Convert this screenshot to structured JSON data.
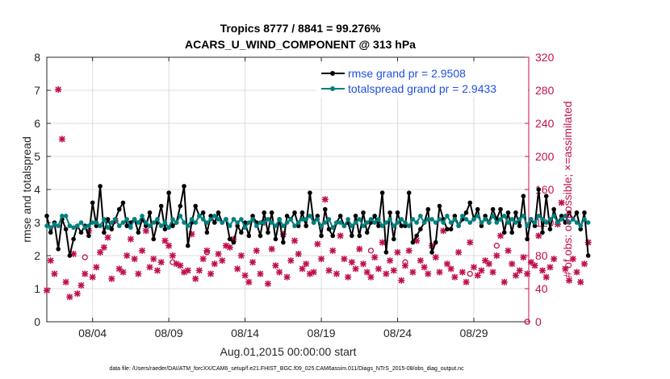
{
  "chart_data": {
    "type": "line",
    "title": [
      "Tropics 8777 / 8841 = 99.276%",
      "ACARS_U_WIND_COMPONENT @ 313 hPa"
    ],
    "xlabel": "Aug.01,2015 00:00:00 start",
    "ylabel": "rmse and totalspread",
    "y2label": "# of obs: o=possible; ×=assimilated",
    "xlim": [
      1,
      32.6
    ],
    "ylim": [
      0,
      8
    ],
    "y2lim": [
      0,
      320
    ],
    "x_ticks": [
      4,
      9,
      14,
      19,
      24,
      29
    ],
    "x_tick_labels": [
      "08/04",
      "08/09",
      "08/14",
      "08/19",
      "08/24",
      "08/29"
    ],
    "y_ticks": [
      0,
      1,
      2,
      3,
      4,
      5,
      6,
      7,
      8
    ],
    "y2_ticks": [
      0,
      40,
      80,
      120,
      160,
      200,
      240,
      280,
      320
    ],
    "legend_location": "top-right",
    "footer": "data file: /Users/raeder/DAI/ATM_forcXX/CAM6_setup/f.e21.FHIST_BGC.f09_025.CAM6assim.011/Diags_NTrS_2015-08/obs_diag_output.nc",
    "series": [
      {
        "name": "rmse grand pr = 2.9508",
        "axis": "left",
        "color": "#000000",
        "start_day": 1.0,
        "step_days": 0.25,
        "values": [
          3.2,
          2.7,
          3.0,
          2.2,
          3.1,
          2.8,
          2.0,
          2.5,
          2.9,
          2.7,
          2.9,
          2.6,
          3.6,
          2.9,
          4.1,
          2.7,
          3.1,
          2.8,
          3.1,
          3.4,
          3.6,
          2.9,
          3.0,
          3.1,
          2.7,
          3.1,
          2.9,
          3.3,
          2.5,
          3.0,
          3.5,
          2.8,
          3.9,
          2.9,
          3.0,
          3.5,
          4.1,
          2.3,
          3.0,
          3.5,
          3.2,
          3.3,
          2.7,
          3.2,
          3.0,
          3.3,
          3.0,
          3.1,
          2.5,
          2.4,
          2.9,
          2.7,
          3.0,
          2.6,
          3.2,
          3.0,
          2.6,
          3.3,
          2.7,
          3.3,
          2.5,
          3.1,
          2.4,
          3.2,
          3.1,
          3.3,
          2.9,
          3.3,
          2.9,
          3.9,
          3.0,
          3.2,
          2.6,
          3.4,
          2.8,
          2.6,
          3.0,
          3.2,
          2.9,
          3.0,
          2.6,
          3.2,
          2.6,
          3.3,
          2.7,
          3.0,
          3.2,
          2.9,
          3.9,
          2.1,
          3.3,
          2.5,
          3.3,
          2.9,
          2.9,
          3.9,
          2.4,
          2.6,
          2.8,
          3.0,
          3.4,
          2.1,
          2.4,
          3.5,
          3.1,
          2.8,
          2.8,
          3.2,
          2.9,
          3.1,
          3.3,
          3.6,
          3.1,
          3.4,
          2.9,
          3.2,
          3.0,
          3.4,
          3.1,
          3.4,
          2.7,
          3.3,
          2.7,
          3.3,
          2.9,
          3.8,
          2.5,
          3.1,
          2.9,
          4.0,
          2.7,
          3.8,
          2.8,
          3.4,
          3.0,
          3.2,
          3.0,
          3.3,
          3.1,
          3.3,
          2.8,
          3.3,
          2.0
        ]
      },
      {
        "name": "totalspread grand pr = 2.9433",
        "axis": "left",
        "color": "#00807f",
        "start_day": 1.0,
        "step_days": 0.25,
        "values": [
          2.9,
          2.85,
          2.95,
          2.9,
          3.2,
          3.2,
          2.9,
          2.85,
          2.9,
          3.0,
          2.85,
          2.9,
          3.0,
          3.0,
          2.9,
          3.1,
          2.85,
          3.0,
          3.1,
          2.9,
          3.0,
          3.1,
          2.85,
          3.1,
          3.0,
          3.2,
          3.0,
          2.9,
          3.0,
          3.1,
          2.9,
          3.0,
          2.85,
          3.1,
          3.0,
          3.2,
          3.0,
          2.9,
          3.1,
          3.0,
          3.2,
          3.1,
          3.0,
          3.1,
          3.2,
          3.1,
          3.0,
          3.1,
          2.9,
          3.1,
          3.0,
          3.1,
          2.85,
          3.0,
          3.1,
          2.9,
          3.0,
          3.0,
          3.1,
          3.0,
          2.9,
          3.1,
          2.9,
          3.0,
          3.1,
          2.9,
          3.0,
          3.1,
          3.1,
          3.2,
          3.0,
          3.1,
          2.9,
          3.0,
          3.1,
          2.85,
          3.0,
          3.0,
          2.9,
          3.1,
          2.9,
          3.0,
          3.1,
          2.9,
          3.0,
          3.1,
          3.0,
          3.1,
          2.9,
          3.0,
          3.1,
          2.9,
          3.0,
          3.1,
          3.0,
          2.9,
          3.1,
          3.0,
          3.2,
          3.0,
          3.1,
          3.1,
          3.0,
          3.1,
          3.0,
          3.2,
          3.0,
          3.1,
          2.9,
          3.2,
          3.1,
          3.0,
          3.1,
          3.2,
          3.0,
          3.1,
          3.0,
          3.2,
          3.0,
          3.1,
          3.2,
          3.0,
          3.1,
          3.0,
          3.1,
          3.2,
          2.9,
          3.1,
          3.0,
          3.2,
          3.1,
          3.0,
          3.1,
          3.2,
          3.0,
          3.1,
          3.2,
          3.0,
          3.1,
          3.0,
          2.9,
          3.1,
          3.0
        ]
      },
      {
        "name": "# of obs assimilated",
        "axis": "right",
        "color": "#c0104e",
        "marker": "x",
        "start_day": 1.0,
        "step_days": 0.25,
        "values": [
          38,
          74,
          58,
          281,
          221,
          48,
          30,
          82,
          34,
          44,
          58,
          110,
          54,
          66,
          84,
          90,
          102,
          52,
          122,
          64,
          60,
          80,
          100,
          76,
          58,
          86,
          110,
          66,
          76,
          62,
          72,
          98,
          92,
          80,
          70,
          68,
          60,
          62,
          106,
          52,
          62,
          76,
          86,
          58,
          70,
          82,
          74,
          92,
          90,
          100,
          64,
          80,
          56,
          48,
          72,
          86,
          58,
          120,
          46,
          88,
          68,
          60,
          106,
          54,
          74,
          98,
          82,
          64,
          70,
          58,
          60,
          94,
          76,
          148,
          62,
          86,
          58,
          104,
          76,
          54,
          72,
          64,
          88,
          70,
          60,
          54,
          78,
          64,
          96,
          58,
          74,
          62,
          84,
          50,
          68,
          86,
          60,
          98,
          74,
          66,
          58,
          92,
          78,
          60,
          110,
          70,
          64,
          54,
          84,
          60,
          48,
          96,
          66,
          56,
          62,
          74,
          70,
          60,
          80,
          104,
          48,
          86,
          70,
          56,
          62,
          78,
          58,
          72,
          68,
          104,
          62,
          54,
          66,
          76,
          118,
          144,
          64,
          50,
          76,
          60,
          48,
          70,
          96
        ]
      },
      {
        "name": "# of obs possible",
        "axis": "right",
        "color": "#c0104e",
        "marker": "o",
        "points": [
          [
            3.5,
            78
          ],
          [
            9.25,
            72
          ],
          [
            11.5,
            84
          ],
          [
            22.25,
            86
          ],
          [
            24.5,
            72
          ],
          [
            28.75,
            58
          ],
          [
            30.5,
            92
          ],
          [
            32.5,
            0
          ]
        ]
      }
    ]
  }
}
